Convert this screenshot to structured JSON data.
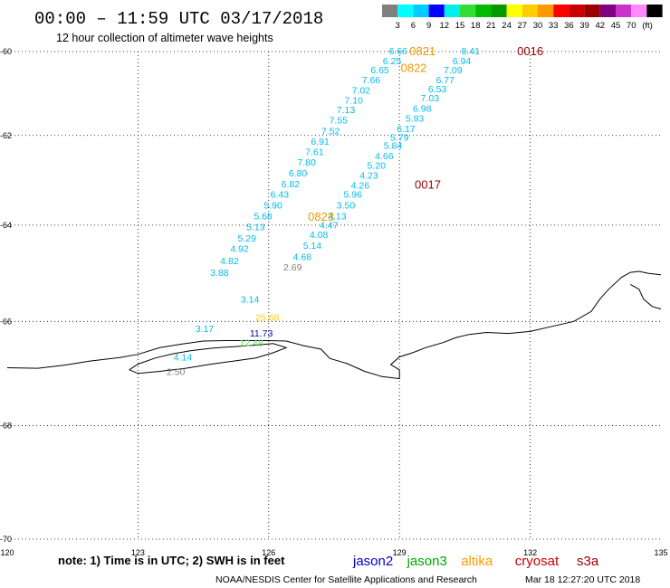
{
  "header": {
    "title": "00:00 – 11:59 UTC 03/17/2018",
    "subtitle": "12 hour collection of altimeter wave heights"
  },
  "legend": {
    "colors": [
      "#808080",
      "#00ffff",
      "#00ccff",
      "#0000ff",
      "#00eeee",
      "#33dd33",
      "#00bb00",
      "#009900",
      "#ffff00",
      "#ffcc00",
      "#ff9900",
      "#ff0000",
      "#cc0000",
      "#990000",
      "#800080",
      "#cc33cc",
      "#ff88ff",
      "#000000"
    ],
    "labels": [
      "3",
      "6",
      "9",
      "12",
      "15",
      "18",
      "21",
      "24",
      "27",
      "30",
      "33",
      "36",
      "39",
      "42",
      "45",
      "70"
    ],
    "unit": "(ft)"
  },
  "axes": {
    "x_ticks": [
      "120",
      "123",
      "126",
      "129",
      "132",
      "135"
    ],
    "y_ticks": [
      "-60",
      "-62",
      "-64",
      "-66",
      "-68",
      "-70"
    ]
  },
  "footer": {
    "note": "note: 1) Time is in UTC; 2) SWH is in feet",
    "satellites": [
      {
        "name": "jason2",
        "color": "#0000cc"
      },
      {
        "name": "jason3",
        "color": "#00aa00"
      },
      {
        "name": "altika",
        "color": "#ff9900"
      },
      {
        "name": "cryosat",
        "color": "#cc0000"
      },
      {
        "name": "s3a",
        "color": "#990000"
      }
    ],
    "credit": "NOAA/NESDIS Center for Satellite Applications and Research",
    "timestamp": "Mar 18 12:27:20 UTC 2018"
  },
  "observations": [
    {
      "text": "6.66",
      "lon": 128.97,
      "lat": -59.98,
      "color": "#00bbee"
    },
    {
      "text": "6.25",
      "lon": 128.83,
      "lat": -60.22,
      "color": "#00bbee"
    },
    {
      "text": "6.65",
      "lon": 128.55,
      "lat": -60.44,
      "color": "#00bbee"
    },
    {
      "text": "7.66",
      "lon": 128.35,
      "lat": -60.68,
      "color": "#00bbee"
    },
    {
      "text": "7.02",
      "lon": 128.12,
      "lat": -60.93,
      "color": "#00bbee"
    },
    {
      "text": "7.10",
      "lon": 127.95,
      "lat": -61.17,
      "color": "#00bbee"
    },
    {
      "text": "7.13",
      "lon": 127.77,
      "lat": -61.39,
      "color": "#00bbee"
    },
    {
      "text": "7.55",
      "lon": 127.6,
      "lat": -61.64,
      "color": "#00bbee"
    },
    {
      "text": "7.52",
      "lon": 127.42,
      "lat": -61.89,
      "color": "#00bbee"
    },
    {
      "text": "6.91",
      "lon": 127.18,
      "lat": -62.13,
      "color": "#00bbee"
    },
    {
      "text": "7.61",
      "lon": 127.05,
      "lat": -62.37,
      "color": "#00bbee"
    },
    {
      "text": "7.80",
      "lon": 126.87,
      "lat": -62.6,
      "color": "#00bbee"
    },
    {
      "text": "6.80",
      "lon": 126.67,
      "lat": -62.85,
      "color": "#00bbee"
    },
    {
      "text": "6.82",
      "lon": 126.5,
      "lat": -63.09,
      "color": "#00bbee"
    },
    {
      "text": "6.43",
      "lon": 126.25,
      "lat": -63.32,
      "color": "#00bbee"
    },
    {
      "text": "5.90",
      "lon": 126.1,
      "lat": -63.56,
      "color": "#00bbee"
    },
    {
      "text": "5.68",
      "lon": 125.87,
      "lat": -63.8,
      "color": "#00bbee"
    },
    {
      "text": "5.13",
      "lon": 125.7,
      "lat": -64.03,
      "color": "#00bbee"
    },
    {
      "text": "5.29",
      "lon": 125.5,
      "lat": -64.27,
      "color": "#00bbee"
    },
    {
      "text": "4.92",
      "lon": 125.33,
      "lat": -64.5,
      "color": "#00bbee"
    },
    {
      "text": "4.82",
      "lon": 125.1,
      "lat": -64.75,
      "color": "#00bbee"
    },
    {
      "text": "3.88",
      "lon": 124.87,
      "lat": -65.0,
      "color": "#00bbee"
    },
    {
      "text": "3.14",
      "lon": 125.57,
      "lat": -65.55,
      "color": "#00bbee"
    },
    {
      "text": "3.17",
      "lon": 124.53,
      "lat": -66.14,
      "color": "#00bbee"
    },
    {
      "text": "4.14",
      "lon": 124.03,
      "lat": -66.7,
      "color": "#00bbee"
    },
    {
      "text": "8.41",
      "lon": 130.63,
      "lat": -59.98,
      "color": "#00bbee"
    },
    {
      "text": "6.94",
      "lon": 130.43,
      "lat": -60.22,
      "color": "#00bbee"
    },
    {
      "text": "7.09",
      "lon": 130.23,
      "lat": -60.44,
      "color": "#00bbee"
    },
    {
      "text": "6.77",
      "lon": 130.05,
      "lat": -60.68,
      "color": "#00bbee"
    },
    {
      "text": "6.53",
      "lon": 129.87,
      "lat": -60.9,
      "color": "#00bbee"
    },
    {
      "text": "7.03",
      "lon": 129.7,
      "lat": -61.12,
      "color": "#00bbee"
    },
    {
      "text": "6.98",
      "lon": 129.52,
      "lat": -61.36,
      "color": "#00bbee"
    },
    {
      "text": "5.93",
      "lon": 129.35,
      "lat": -61.6,
      "color": "#00bbee"
    },
    {
      "text": "6.17",
      "lon": 129.15,
      "lat": -61.84,
      "color": "#00bbee"
    },
    {
      "text": "5.79",
      "lon": 129.0,
      "lat": -62.04,
      "color": "#00bbee"
    },
    {
      "text": "5.84",
      "lon": 128.85,
      "lat": -62.22,
      "color": "#00bbee"
    },
    {
      "text": "4.66",
      "lon": 128.65,
      "lat": -62.46,
      "color": "#00bbee"
    },
    {
      "text": "5.20",
      "lon": 128.47,
      "lat": -62.68,
      "color": "#00bbee"
    },
    {
      "text": "4.23",
      "lon": 128.3,
      "lat": -62.9,
      "color": "#00bbee"
    },
    {
      "text": "4.26",
      "lon": 128.1,
      "lat": -63.12,
      "color": "#00bbee"
    },
    {
      "text": "5.96",
      "lon": 127.93,
      "lat": -63.32,
      "color": "#00bbee"
    },
    {
      "text": "3.50",
      "lon": 127.77,
      "lat": -63.56,
      "color": "#00bbee"
    },
    {
      "text": "4.13",
      "lon": 127.57,
      "lat": -63.8,
      "color": "#00bbee"
    },
    {
      "text": "4.47",
      "lon": 127.38,
      "lat": -63.99,
      "color": "#00bbee"
    },
    {
      "text": "4.08",
      "lon": 127.15,
      "lat": -64.2,
      "color": "#00bbee"
    },
    {
      "text": "5.14",
      "lon": 127.0,
      "lat": -64.43,
      "color": "#00bbee"
    },
    {
      "text": "4.68",
      "lon": 126.77,
      "lat": -64.67,
      "color": "#00bbee"
    },
    {
      "text": "2.69",
      "lon": 126.55,
      "lat": -64.89,
      "color": "#808080"
    },
    {
      "text": "2.50",
      "lon": 123.87,
      "lat": -66.98,
      "color": "#808080"
    },
    {
      "text": "25.68",
      "lon": 125.97,
      "lat": -65.91,
      "color": "#ffcc00"
    },
    {
      "text": "11.73",
      "lon": 125.83,
      "lat": -66.23,
      "color": "#0000aa"
    },
    {
      "text": "12.48",
      "lon": 125.6,
      "lat": -66.42,
      "color": "#66dd66"
    }
  ],
  "time_labels": [
    {
      "text": "0821",
      "lon": 129.53,
      "lat": -59.98,
      "color": "#ee9900"
    },
    {
      "text": "0822",
      "lon": 129.33,
      "lat": -60.39,
      "color": "#ee9900"
    },
    {
      "text": "0823",
      "lon": 127.2,
      "lat": -63.81,
      "color": "#ee9900"
    },
    {
      "text": "0016",
      "lon": 132.0,
      "lat": -59.98,
      "color": "#990000"
    },
    {
      "text": "0017",
      "lon": 129.65,
      "lat": -63.1,
      "color": "#990000"
    }
  ],
  "coastline": [
    [
      [
        120.0,
        -66.91
      ],
      [
        120.7,
        -66.92
      ],
      [
        121.3,
        -66.86
      ],
      [
        121.9,
        -66.78
      ],
      [
        122.6,
        -66.71
      ],
      [
        123.0,
        -66.65
      ],
      [
        123.5,
        -66.52
      ],
      [
        124.0,
        -66.45
      ],
      [
        124.5,
        -66.39
      ],
      [
        125.0,
        -66.38
      ],
      [
        125.5,
        -66.38
      ],
      [
        126.0,
        -66.38
      ],
      [
        126.4,
        -66.39
      ],
      [
        126.8,
        -66.48
      ],
      [
        127.2,
        -66.55
      ],
      [
        127.4,
        -66.73
      ],
      [
        127.8,
        -66.83
      ],
      [
        128.2,
        -66.98
      ],
      [
        128.6,
        -67.08
      ],
      [
        129.0,
        -67.12
      ],
      [
        129.0,
        -66.95
      ],
      [
        128.8,
        -66.85
      ],
      [
        129.0,
        -66.7
      ],
      [
        129.3,
        -66.62
      ],
      [
        129.6,
        -66.52
      ],
      [
        130.0,
        -66.42
      ],
      [
        130.3,
        -66.32
      ],
      [
        130.6,
        -66.26
      ],
      [
        131.0,
        -66.22
      ],
      [
        131.5,
        -66.24
      ],
      [
        132.0,
        -66.2
      ],
      [
        132.5,
        -66.1
      ],
      [
        133.0,
        -66.0
      ],
      [
        133.4,
        -65.8
      ],
      [
        133.6,
        -65.55
      ],
      [
        133.8,
        -65.35
      ],
      [
        134.1,
        -65.1
      ],
      [
        134.3,
        -65.0
      ],
      [
        134.5,
        -64.98
      ],
      [
        134.7,
        -65.02
      ],
      [
        135.0,
        -65.05
      ]
    ],
    [
      [
        122.8,
        -66.95
      ],
      [
        123.0,
        -66.84
      ],
      [
        123.4,
        -66.72
      ],
      [
        123.8,
        -66.64
      ],
      [
        124.2,
        -66.58
      ],
      [
        124.7,
        -66.53
      ],
      [
        125.2,
        -66.5
      ],
      [
        125.7,
        -66.47
      ],
      [
        126.1,
        -66.44
      ],
      [
        126.4,
        -66.52
      ],
      [
        126.1,
        -66.62
      ],
      [
        125.7,
        -66.72
      ],
      [
        125.2,
        -66.78
      ],
      [
        124.6,
        -66.85
      ],
      [
        124.1,
        -66.92
      ],
      [
        123.5,
        -66.98
      ],
      [
        123.0,
        -67.02
      ],
      [
        122.8,
        -66.95
      ]
    ],
    [
      [
        134.3,
        -65.25
      ],
      [
        134.5,
        -65.35
      ],
      [
        134.6,
        -65.55
      ],
      [
        134.8,
        -65.7
      ],
      [
        135.0,
        -65.75
      ]
    ]
  ]
}
